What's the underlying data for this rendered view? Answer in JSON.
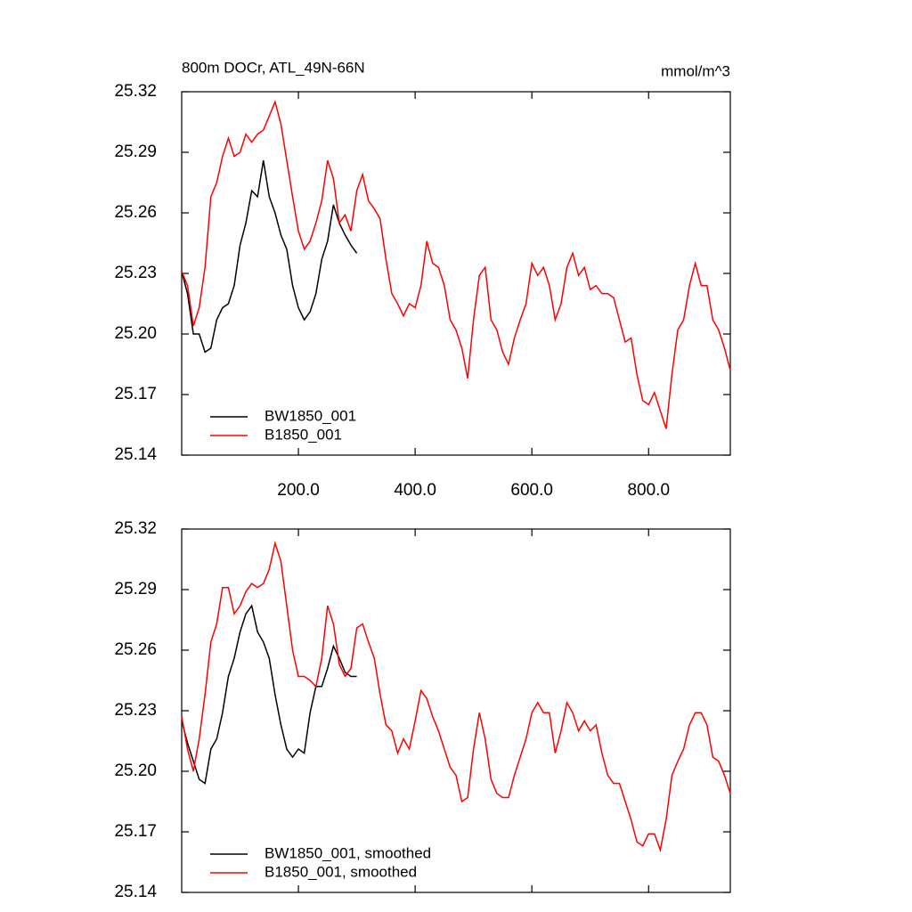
{
  "chart_data": [
    {
      "type": "line",
      "title": "800m DOCr, ATL_49N-66N",
      "units_label": "mmol/m^3",
      "x": [
        0,
        10,
        20,
        30,
        40,
        50,
        60,
        70,
        80,
        90,
        100,
        110,
        120,
        130,
        140,
        150,
        160,
        170,
        180,
        190,
        200,
        210,
        220,
        230,
        240,
        250,
        260,
        270,
        280,
        290,
        300,
        310,
        320,
        330,
        340,
        350,
        360,
        370,
        380,
        390,
        400,
        410,
        420,
        430,
        440,
        450,
        460,
        470,
        480,
        490,
        500,
        510,
        520,
        530,
        540,
        550,
        560,
        570,
        580,
        590,
        600,
        610,
        620,
        630,
        640,
        650,
        660,
        670,
        680,
        690,
        700,
        710,
        720,
        730,
        740,
        750,
        760,
        770,
        780,
        790,
        800,
        810,
        820,
        830,
        840,
        850,
        860,
        870,
        880,
        890,
        900,
        910,
        920,
        930,
        940
      ],
      "series": [
        {
          "name": "BW1850_001",
          "color": "#000000",
          "values": [
            25.231,
            25.22,
            25.2,
            25.2,
            25.191,
            25.193,
            25.207,
            25.213,
            25.215,
            25.224,
            25.244,
            25.255,
            25.271,
            25.268,
            25.286,
            25.268,
            25.26,
            25.249,
            25.242,
            25.224,
            25.213,
            25.207,
            25.211,
            25.22,
            25.237,
            25.246,
            25.264,
            25.255,
            25.249,
            25.244,
            25.24,
            null,
            null,
            null,
            null,
            null,
            null,
            null,
            null,
            null,
            null,
            null,
            null,
            null,
            null,
            null,
            null,
            null,
            null,
            null,
            null,
            null,
            null,
            null,
            null,
            null,
            null,
            null,
            null,
            null,
            null,
            null,
            null,
            null,
            null,
            null,
            null,
            null,
            null,
            null,
            null,
            null,
            null,
            null,
            null,
            null,
            null,
            null,
            null,
            null,
            null,
            null,
            null,
            null,
            null,
            null,
            null,
            null,
            null,
            null,
            null,
            null,
            null,
            null,
            null
          ]
        },
        {
          "name": "B1850_001",
          "color": "#ff0000",
          "values": [
            25.231,
            25.224,
            25.204,
            25.213,
            25.233,
            25.268,
            25.275,
            25.288,
            25.297,
            25.288,
            25.29,
            25.299,
            25.295,
            25.299,
            25.301,
            25.308,
            25.315,
            25.304,
            25.286,
            25.268,
            25.251,
            25.242,
            25.246,
            25.255,
            25.266,
            25.286,
            25.277,
            25.255,
            25.259,
            25.251,
            25.271,
            25.279,
            25.266,
            25.262,
            25.257,
            25.237,
            25.22,
            25.215,
            25.209,
            25.215,
            25.213,
            25.224,
            25.246,
            25.235,
            25.233,
            25.224,
            25.207,
            25.202,
            25.193,
            25.178,
            25.207,
            25.229,
            25.233,
            25.207,
            25.202,
            25.191,
            25.185,
            25.198,
            25.207,
            25.215,
            25.235,
            25.229,
            25.233,
            25.224,
            25.207,
            25.215,
            25.233,
            25.24,
            25.229,
            25.233,
            25.222,
            25.224,
            25.22,
            25.22,
            25.218,
            25.207,
            25.196,
            25.198,
            25.18,
            25.167,
            25.165,
            25.171,
            25.162,
            25.153,
            25.18,
            25.202,
            25.207,
            25.224,
            25.235,
            25.224,
            25.224,
            25.207,
            25.202,
            25.193,
            25.182
          ]
        }
      ],
      "xlim": [
        0,
        940
      ],
      "ylim": [
        25.14,
        25.32
      ],
      "xticks": [
        {
          "value": 200,
          "label": "200.0"
        },
        {
          "value": 400,
          "label": "400.0"
        },
        {
          "value": 600,
          "label": "600.0"
        },
        {
          "value": 800,
          "label": "800.0"
        }
      ],
      "yticks": [
        25.14,
        25.17,
        {
          "value": 25.2,
          "label": "25.20"
        },
        25.23,
        25.26,
        25.29,
        25.32
      ],
      "grid": false
    },
    {
      "type": "line",
      "x": [
        0,
        10,
        20,
        30,
        40,
        50,
        60,
        70,
        80,
        90,
        100,
        110,
        120,
        130,
        140,
        150,
        160,
        170,
        180,
        190,
        200,
        210,
        220,
        230,
        240,
        250,
        260,
        270,
        280,
        290,
        300,
        310,
        320,
        330,
        340,
        350,
        360,
        370,
        380,
        390,
        400,
        410,
        420,
        430,
        440,
        450,
        460,
        470,
        480,
        490,
        500,
        510,
        520,
        530,
        540,
        550,
        560,
        570,
        580,
        590,
        600,
        610,
        620,
        630,
        640,
        650,
        660,
        670,
        680,
        690,
        700,
        710,
        720,
        730,
        740,
        750,
        760,
        770,
        780,
        790,
        800,
        810,
        820,
        830,
        840,
        850,
        860,
        870,
        880,
        890,
        900,
        910,
        920,
        930,
        940
      ],
      "series": [
        {
          "name": "BW1850_001, smoothed",
          "color": "#000000",
          "values": [
            25.225,
            25.214,
            25.205,
            25.196,
            25.194,
            25.211,
            25.216,
            25.229,
            25.247,
            25.256,
            25.269,
            25.278,
            25.282,
            25.269,
            25.264,
            25.256,
            25.238,
            25.223,
            25.211,
            25.207,
            25.211,
            25.209,
            25.229,
            25.242,
            25.242,
            25.251,
            25.262,
            25.256,
            25.249,
            25.247,
            25.247,
            null,
            null,
            null,
            null,
            null,
            null,
            null,
            null,
            null,
            null,
            null,
            null,
            null,
            null,
            null,
            null,
            null,
            null,
            null,
            null,
            null,
            null,
            null,
            null,
            null,
            null,
            null,
            null,
            null,
            null,
            null,
            null,
            null,
            null,
            null,
            null,
            null,
            null,
            null,
            null,
            null,
            null,
            null,
            null,
            null,
            null,
            null,
            null,
            null,
            null,
            null,
            null,
            null,
            null,
            null,
            null,
            null,
            null,
            null,
            null,
            null,
            null,
            null,
            null
          ]
        },
        {
          "name": "B1850_001, smoothed",
          "color": "#ff0000",
          "values": [
            25.227,
            25.211,
            25.2,
            25.216,
            25.238,
            25.264,
            25.273,
            25.291,
            25.291,
            25.278,
            25.282,
            25.289,
            25.293,
            25.291,
            25.293,
            25.3,
            25.313,
            25.304,
            25.282,
            25.26,
            25.247,
            25.247,
            25.245,
            25.242,
            25.256,
            25.282,
            25.273,
            25.253,
            25.247,
            25.251,
            25.271,
            25.273,
            25.264,
            25.256,
            25.238,
            25.223,
            25.22,
            25.209,
            25.216,
            25.211,
            25.225,
            25.24,
            25.236,
            25.227,
            25.22,
            25.211,
            25.202,
            25.198,
            25.185,
            25.187,
            25.211,
            25.229,
            25.216,
            25.196,
            25.189,
            25.187,
            25.187,
            25.198,
            25.207,
            25.216,
            25.229,
            25.234,
            25.229,
            25.229,
            25.209,
            25.22,
            25.234,
            25.229,
            25.22,
            25.225,
            25.22,
            25.223,
            25.209,
            25.198,
            25.194,
            25.194,
            25.185,
            25.176,
            25.165,
            25.163,
            25.169,
            25.169,
            25.161,
            25.176,
            25.198,
            25.205,
            25.211,
            25.223,
            25.229,
            25.229,
            25.223,
            25.207,
            25.205,
            25.198,
            25.189
          ]
        }
      ],
      "xlim": [
        0,
        940
      ],
      "ylim": [
        25.14,
        25.32
      ],
      "xticks": [
        200,
        400,
        600,
        800
      ],
      "yticks": [
        25.14,
        25.17,
        {
          "value": 25.2,
          "label": "25.20"
        },
        25.23,
        25.26,
        25.29,
        25.32
      ],
      "grid": false
    }
  ]
}
